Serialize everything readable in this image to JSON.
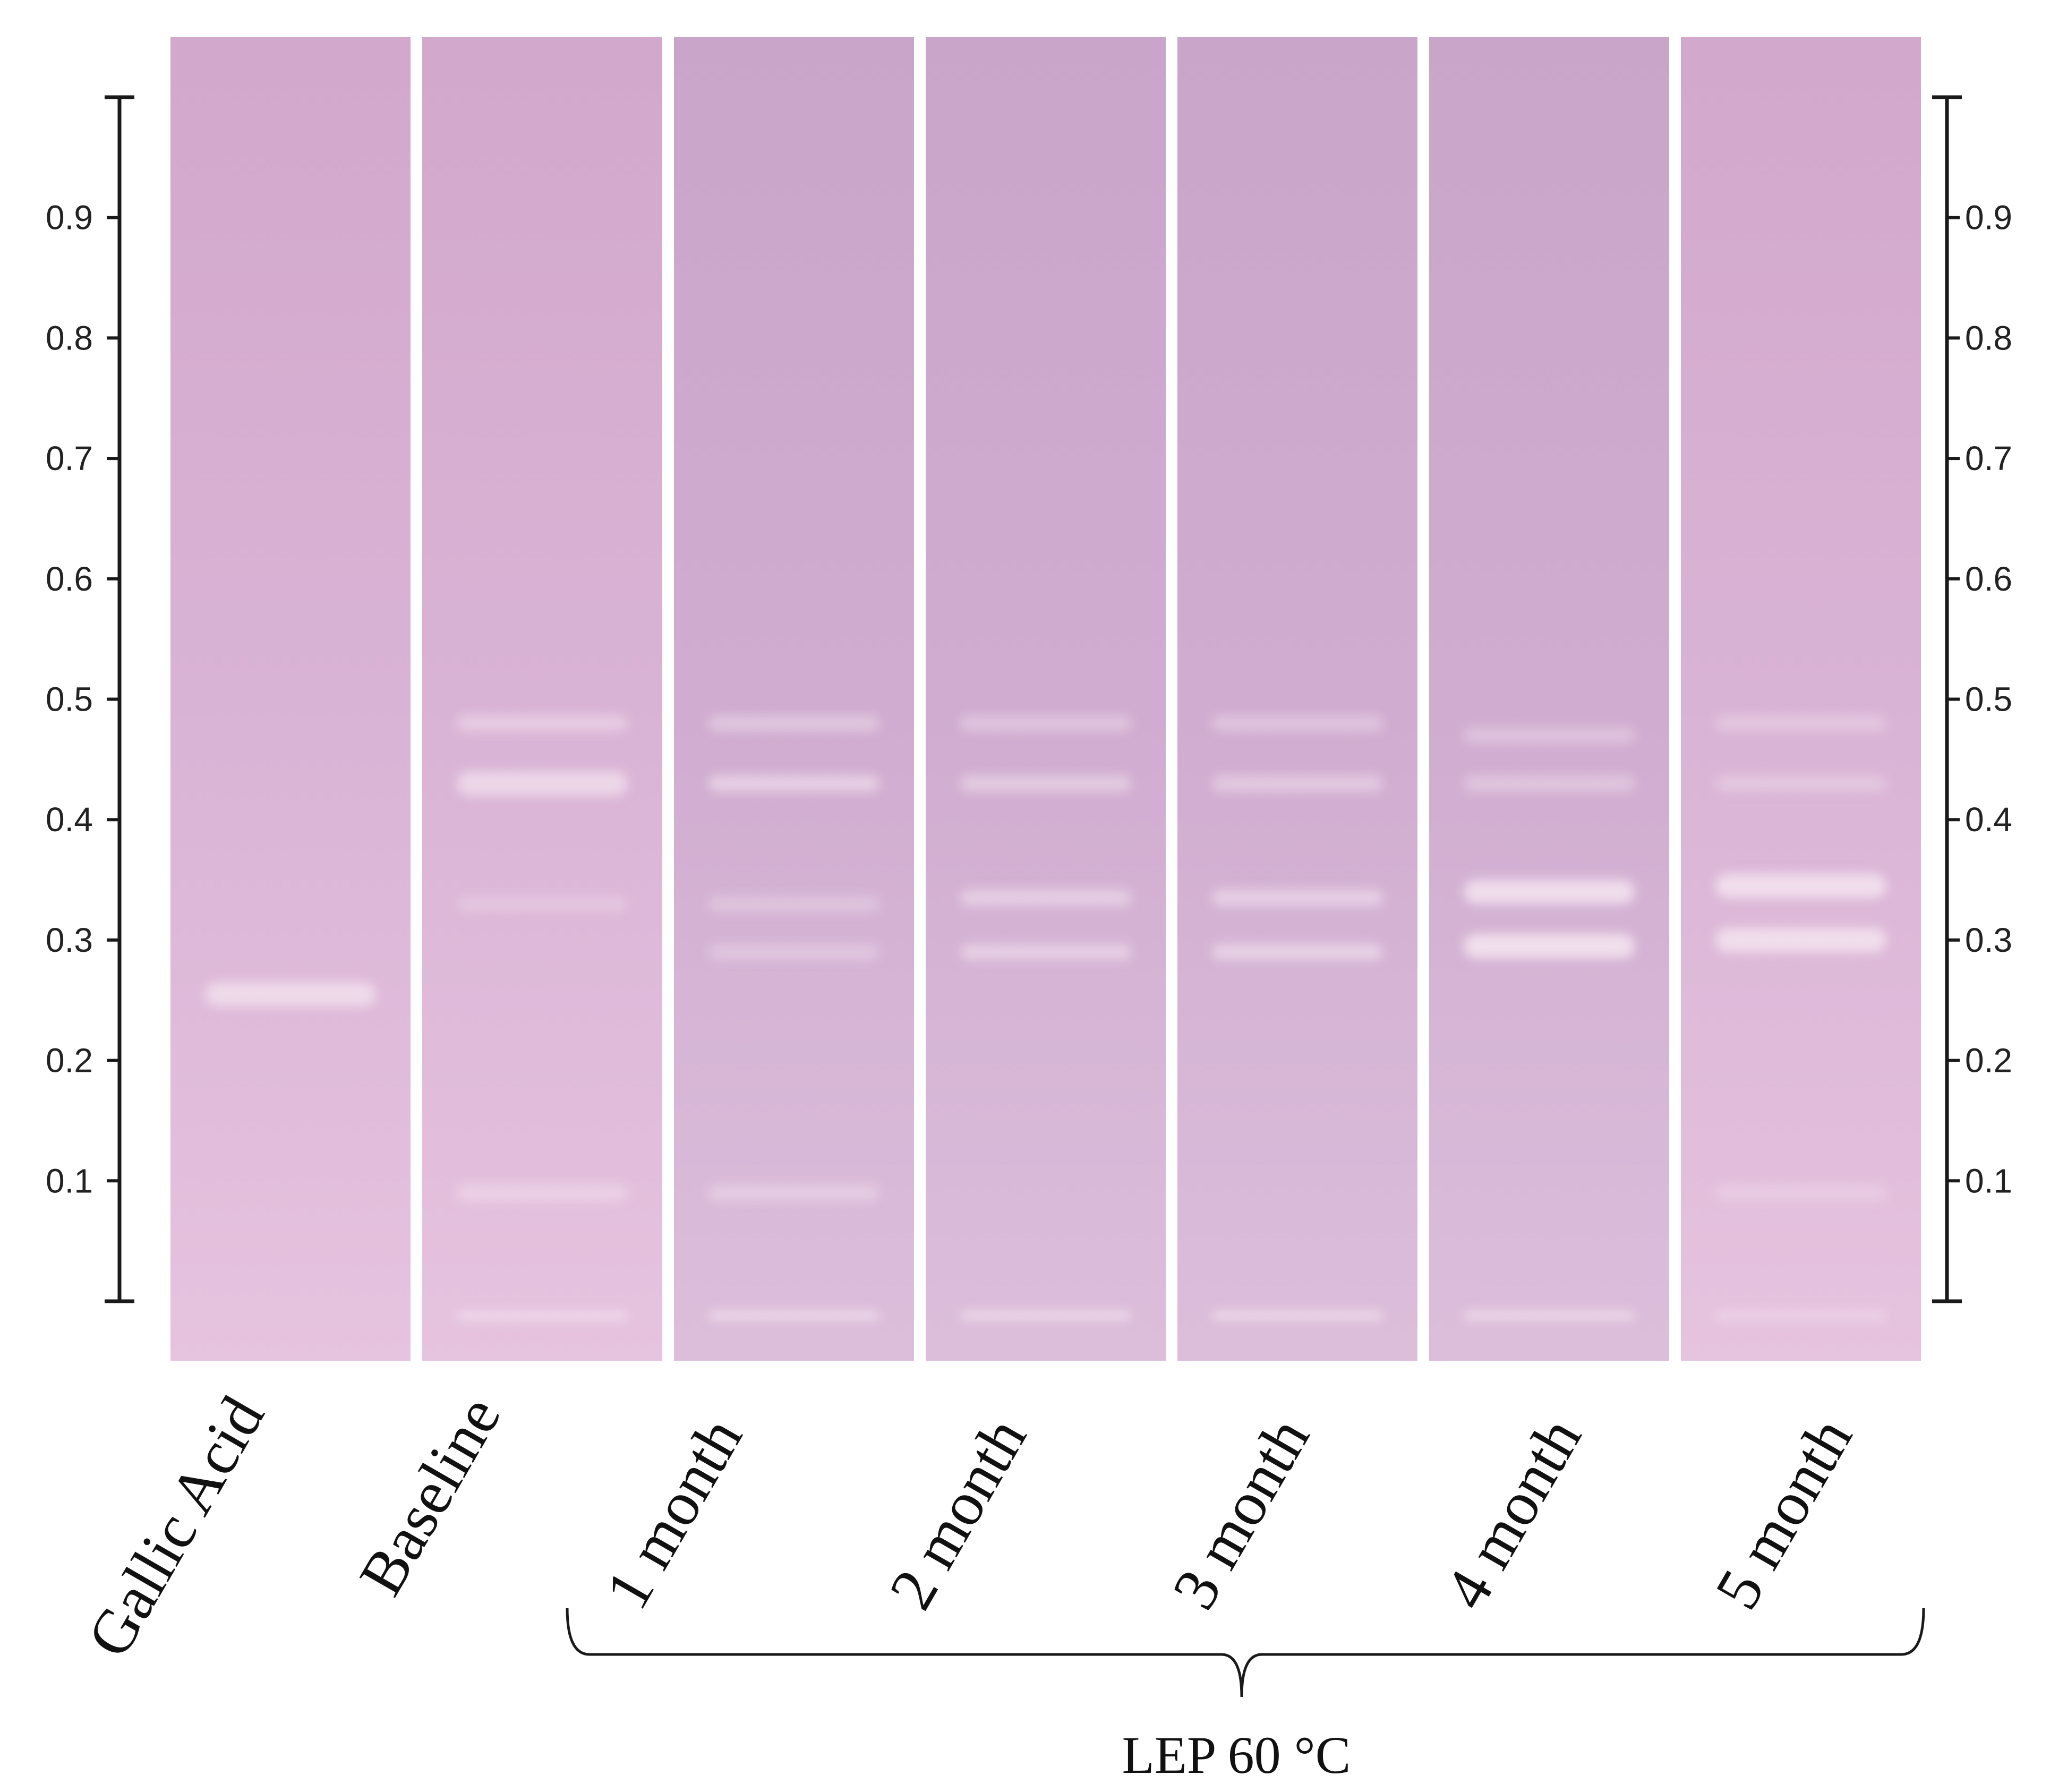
{
  "figure": {
    "colors": {
      "plate": "#d6b0d2",
      "plate_light": "#e8c4e1",
      "plate_dark": "#c8a3c9",
      "band": "#f3e3ef",
      "axis": "#1a1a1a",
      "background": "#ffffff"
    },
    "scale": {
      "ticks": [
        "0.9",
        "0.8",
        "0.7",
        "0.6",
        "0.5",
        "0.4",
        "0.3",
        "0.2",
        "0.1"
      ],
      "tick_values": [
        0.9,
        0.8,
        0.7,
        0.6,
        0.5,
        0.4,
        0.3,
        0.2,
        0.1
      ],
      "range": [
        0,
        1
      ]
    },
    "lanes": [
      {
        "label": "Gallic Acid",
        "bands": [
          {
            "rf": 0.255,
            "strength": 0.7
          }
        ]
      },
      {
        "label": "Baseline",
        "bands": [
          {
            "rf": 0.48,
            "strength": 0.35
          },
          {
            "rf": 0.43,
            "strength": 0.65
          },
          {
            "rf": 0.33,
            "strength": 0.12
          },
          {
            "rf": 0.09,
            "strength": 0.35
          },
          {
            "rf": -0.012,
            "strength": 0.9
          }
        ]
      },
      {
        "label": "1 month",
        "bands": [
          {
            "rf": 0.48,
            "strength": 0.3
          },
          {
            "rf": 0.43,
            "strength": 0.55
          },
          {
            "rf": 0.33,
            "strength": 0.18
          },
          {
            "rf": 0.29,
            "strength": 0.2
          },
          {
            "rf": 0.09,
            "strength": 0.3
          },
          {
            "rf": -0.012,
            "strength": 0.9
          }
        ]
      },
      {
        "label": "2 month",
        "bands": [
          {
            "rf": 0.48,
            "strength": 0.25
          },
          {
            "rf": 0.43,
            "strength": 0.4
          },
          {
            "rf": 0.335,
            "strength": 0.45
          },
          {
            "rf": 0.29,
            "strength": 0.45
          },
          {
            "rf": -0.012,
            "strength": 0.9
          }
        ]
      },
      {
        "label": "3 month",
        "bands": [
          {
            "rf": 0.48,
            "strength": 0.25
          },
          {
            "rf": 0.43,
            "strength": 0.35
          },
          {
            "rf": 0.335,
            "strength": 0.5
          },
          {
            "rf": 0.29,
            "strength": 0.55
          },
          {
            "rf": -0.012,
            "strength": 0.9
          }
        ]
      },
      {
        "label": "4 month",
        "bands": [
          {
            "rf": 0.47,
            "strength": 0.2
          },
          {
            "rf": 0.43,
            "strength": 0.25
          },
          {
            "rf": 0.34,
            "strength": 0.85
          },
          {
            "rf": 0.295,
            "strength": 0.9
          },
          {
            "rf": -0.012,
            "strength": 0.9
          }
        ]
      },
      {
        "label": "5 month",
        "bands": [
          {
            "rf": 0.48,
            "strength": 0.2
          },
          {
            "rf": 0.43,
            "strength": 0.2
          },
          {
            "rf": 0.345,
            "strength": 0.85
          },
          {
            "rf": 0.3,
            "strength": 0.85
          },
          {
            "rf": 0.09,
            "strength": 0.15
          },
          {
            "rf": -0.012,
            "strength": 0.6
          }
        ]
      }
    ],
    "group": {
      "label": "LEP 60 °C"
    }
  }
}
